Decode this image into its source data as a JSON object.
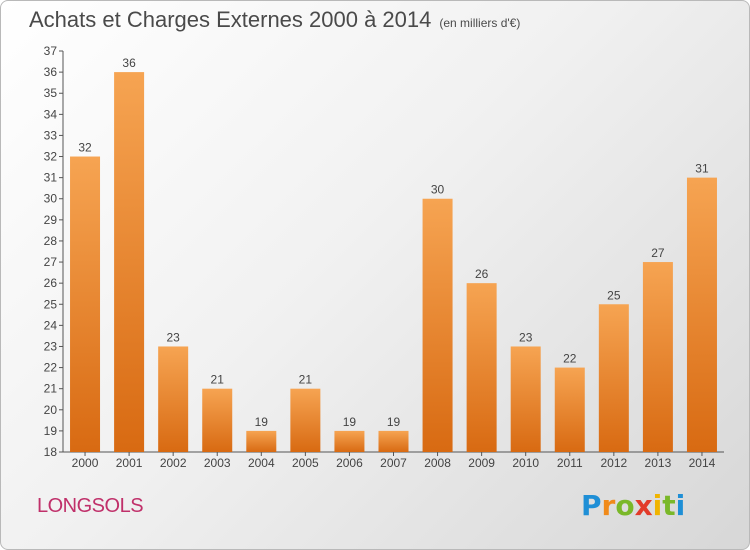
{
  "header": {
    "title": "Achats et Charges Externes 2000 à 2014",
    "subtitle": "(en milliers d'€)"
  },
  "footer": {
    "city": "LONGSOLS",
    "logo_letters": [
      "P",
      "r",
      "o",
      "x",
      "i",
      "t",
      "i"
    ],
    "logo_colors": [
      "#1f8fd6",
      "#f08a1a",
      "#7ab829",
      "#e23b2a",
      "#f0b400",
      "#7ab829",
      "#1f8fd6"
    ]
  },
  "colors": {
    "bar_light": "#f6a452",
    "bar_dark": "#d86a12",
    "city": "#c0306a"
  },
  "chart_data": {
    "type": "bar",
    "categories": [
      "2000",
      "2001",
      "2002",
      "2003",
      "2004",
      "2005",
      "2006",
      "2007",
      "2008",
      "2009",
      "2010",
      "2011",
      "2012",
      "2013",
      "2014"
    ],
    "values": [
      32,
      36,
      23,
      21,
      19,
      21,
      19,
      19,
      30,
      26,
      23,
      22,
      25,
      27,
      31
    ],
    "ylim": [
      18,
      37
    ],
    "yticks": [
      18,
      19,
      20,
      21,
      22,
      23,
      24,
      25,
      26,
      27,
      28,
      29,
      30,
      31,
      32,
      33,
      34,
      35,
      36,
      37
    ],
    "grid": false,
    "title": "Achats et Charges Externes 2000 à 2014",
    "xlabel": "",
    "ylabel": ""
  }
}
